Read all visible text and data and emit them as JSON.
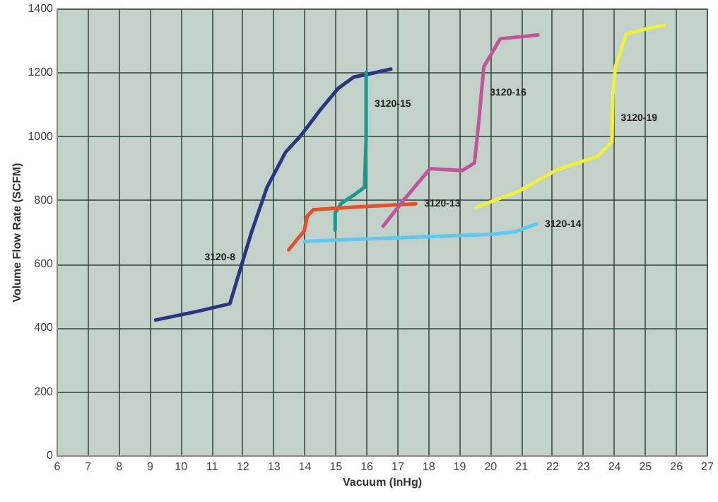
{
  "chart_data": {
    "type": "line",
    "xlabel": "Vacuum (InHg)",
    "ylabel": "Volume Flow Rate (SCFM)",
    "xlim": [
      6,
      27
    ],
    "xticks": [
      6,
      7,
      8,
      9,
      10,
      11,
      12,
      13,
      14,
      15,
      16,
      17,
      18,
      19,
      20,
      21,
      22,
      23,
      24,
      25,
      26,
      27
    ],
    "ylim": [
      0,
      1400
    ],
    "yticks": [
      0,
      200,
      400,
      600,
      800,
      1000,
      1200,
      1400
    ],
    "grid": true,
    "legend": false,
    "marker": "none",
    "line_style": "solid",
    "series": [
      {
        "name": "3120-8",
        "color": "#2e3580",
        "x": [
          9.2,
          10.5,
          11.6,
          11.8,
          12.3,
          12.8,
          13.4,
          13.9,
          14.5,
          15.1,
          15.6,
          16.0,
          16.8
        ],
        "values": [
          424,
          450,
          475,
          540,
          700,
          840,
          950,
          1003,
          1080,
          1150,
          1185,
          1193,
          1210
        ]
      },
      {
        "name": "3120-15",
        "color": "#1a9a8a",
        "x": [
          15.0,
          15.0,
          15.2,
          15.6,
          15.95,
          16.0,
          16.0
        ],
        "values": [
          705,
          760,
          790,
          815,
          840,
          1000,
          1200
        ]
      },
      {
        "name": "3120-13",
        "color": "#e8502a",
        "x": [
          13.5,
          13.8,
          14.0,
          14.1,
          14.3,
          16.0,
          17.6
        ],
        "values": [
          644,
          680,
          703,
          750,
          770,
          780,
          788
        ]
      },
      {
        "name": "3120-14",
        "color": "#5fc8ee",
        "x": [
          14.0,
          16.0,
          18.0,
          20.0,
          20.8,
          21.5
        ],
        "values": [
          670,
          678,
          685,
          692,
          700,
          725
        ]
      },
      {
        "name": "3120-16",
        "color": "#c0559a",
        "x": [
          16.55,
          17.15,
          18.06,
          19.1,
          19.5,
          19.65,
          19.8,
          20.33,
          21.55
        ],
        "values": [
          718,
          792,
          898,
          892,
          916,
          1056,
          1217,
          1305,
          1317
        ]
      },
      {
        "name": "3120-19",
        "color": "#eef03a",
        "x": [
          19.55,
          20.94,
          22.15,
          23.5,
          23.94,
          23.97,
          24.05,
          24.4,
          25.0,
          25.6
        ],
        "values": [
          777,
          828,
          894,
          938,
          983,
          1130,
          1217,
          1320,
          1335,
          1347
        ]
      }
    ]
  }
}
